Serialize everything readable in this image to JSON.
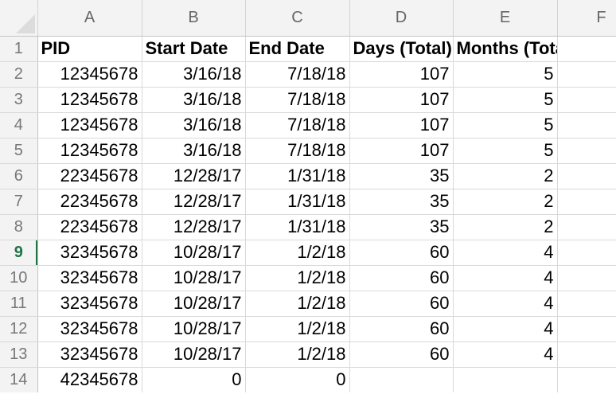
{
  "columns": [
    "A",
    "B",
    "C",
    "D",
    "E",
    "F"
  ],
  "selected_row": "9",
  "header_row": {
    "row_number": "1",
    "cells": [
      "PID",
      "Start Date",
      "End Date",
      "Days (Total)",
      "Months (Total)",
      ""
    ]
  },
  "rows": [
    {
      "n": "2",
      "cells": [
        "12345678",
        "3/16/18",
        "7/18/18",
        "107",
        "5",
        ""
      ]
    },
    {
      "n": "3",
      "cells": [
        "12345678",
        "3/16/18",
        "7/18/18",
        "107",
        "5",
        ""
      ]
    },
    {
      "n": "4",
      "cells": [
        "12345678",
        "3/16/18",
        "7/18/18",
        "107",
        "5",
        ""
      ]
    },
    {
      "n": "5",
      "cells": [
        "12345678",
        "3/16/18",
        "7/18/18",
        "107",
        "5",
        ""
      ]
    },
    {
      "n": "6",
      "cells": [
        "22345678",
        "12/28/17",
        "1/31/18",
        "35",
        "2",
        ""
      ]
    },
    {
      "n": "7",
      "cells": [
        "22345678",
        "12/28/17",
        "1/31/18",
        "35",
        "2",
        ""
      ]
    },
    {
      "n": "8",
      "cells": [
        "22345678",
        "12/28/17",
        "1/31/18",
        "35",
        "2",
        ""
      ]
    },
    {
      "n": "9",
      "cells": [
        "32345678",
        "10/28/17",
        "1/2/18",
        "60",
        "4",
        ""
      ]
    },
    {
      "n": "10",
      "cells": [
        "32345678",
        "10/28/17",
        "1/2/18",
        "60",
        "4",
        ""
      ]
    },
    {
      "n": "11",
      "cells": [
        "32345678",
        "10/28/17",
        "1/2/18",
        "60",
        "4",
        ""
      ]
    },
    {
      "n": "12",
      "cells": [
        "32345678",
        "10/28/17",
        "1/2/18",
        "60",
        "4",
        ""
      ]
    },
    {
      "n": "13",
      "cells": [
        "32345678",
        "10/28/17",
        "1/2/18",
        "60",
        "4",
        ""
      ]
    },
    {
      "n": "14",
      "cells": [
        "42345678",
        "0",
        "0",
        "",
        "",
        ""
      ]
    }
  ]
}
